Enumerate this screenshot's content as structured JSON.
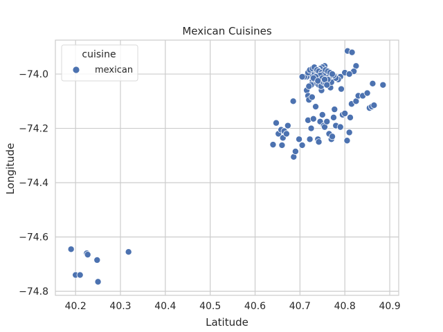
{
  "chart_data": {
    "type": "scatter",
    "title": "Mexican Cuisines",
    "xlabel": "Latitude",
    "ylabel": "Longitude",
    "xlim": [
      40.155,
      40.92
    ],
    "ylim": [
      -74.815,
      -73.875
    ],
    "xticks": [
      40.2,
      40.3,
      40.4,
      40.5,
      40.6,
      40.7,
      40.8,
      40.9
    ],
    "yticks": [
      -74.8,
      -74.6,
      -74.4,
      -74.2,
      -74.0
    ],
    "xtick_labels": [
      "40.2",
      "40.3",
      "40.4",
      "40.5",
      "40.6",
      "40.7",
      "40.8",
      "40.9"
    ],
    "ytick_labels": [
      "−74.8",
      "−74.6",
      "−74.4",
      "−74.2",
      "−74.0"
    ],
    "grid": true,
    "legend": {
      "title": "cuisine",
      "placement": "top-left"
    },
    "series": [
      {
        "name": "mexican",
        "color": "#4c72b0",
        "points": [
          [
            40.19,
            -74.645
          ],
          [
            40.2,
            -74.74
          ],
          [
            40.21,
            -74.74
          ],
          [
            40.225,
            -74.66
          ],
          [
            40.227,
            -74.665
          ],
          [
            40.248,
            -74.685
          ],
          [
            40.25,
            -74.765
          ],
          [
            40.318,
            -74.655
          ],
          [
            40.64,
            -74.26
          ],
          [
            40.647,
            -74.18
          ],
          [
            40.652,
            -74.22
          ],
          [
            40.658,
            -74.205
          ],
          [
            40.66,
            -74.262
          ],
          [
            40.662,
            -74.235
          ],
          [
            40.665,
            -74.21
          ],
          [
            40.67,
            -74.22
          ],
          [
            40.673,
            -74.19
          ],
          [
            40.685,
            -74.1
          ],
          [
            40.686,
            -74.305
          ],
          [
            40.69,
            -74.285
          ],
          [
            40.698,
            -74.24
          ],
          [
            40.705,
            -74.262
          ],
          [
            40.715,
            -74.06
          ],
          [
            40.718,
            -74.08
          ],
          [
            40.718,
            -74.17
          ],
          [
            40.72,
            -74.095
          ],
          [
            40.722,
            -74.24
          ],
          [
            40.725,
            -74.2
          ],
          [
            40.727,
            -74.085
          ],
          [
            40.73,
            -74.165
          ],
          [
            40.735,
            -74.12
          ],
          [
            40.74,
            -74.24
          ],
          [
            40.742,
            -74.25
          ],
          [
            40.745,
            -74.175
          ],
          [
            40.748,
            -74.06
          ],
          [
            40.75,
            -74.15
          ],
          [
            40.753,
            -74.19
          ],
          [
            40.755,
            -74.195
          ],
          [
            40.76,
            -74.175
          ],
          [
            40.765,
            -74.22
          ],
          [
            40.768,
            -74.05
          ],
          [
            40.77,
            -74.24
          ],
          [
            40.772,
            -74.23
          ],
          [
            40.775,
            -74.16
          ],
          [
            40.777,
            -74.13
          ],
          [
            40.78,
            -74.19
          ],
          [
            40.79,
            -74.195
          ],
          [
            40.792,
            -74.055
          ],
          [
            40.795,
            -74.15
          ],
          [
            40.8,
            -74.145
          ],
          [
            40.805,
            -74.245
          ],
          [
            40.81,
            -74.215
          ],
          [
            40.812,
            -74.16
          ],
          [
            40.815,
            -74.11
          ],
          [
            40.825,
            -74.1
          ],
          [
            40.83,
            -74.08
          ],
          [
            40.84,
            -74.08
          ],
          [
            40.85,
            -74.07
          ],
          [
            40.855,
            -74.125
          ],
          [
            40.86,
            -74.12
          ],
          [
            40.865,
            -74.115
          ],
          [
            40.885,
            -74.04
          ],
          [
            40.806,
            -73.915
          ],
          [
            40.816,
            -73.92
          ],
          [
            40.825,
            -73.97
          ],
          [
            40.82,
            -73.99
          ],
          [
            40.8,
            -73.995
          ],
          [
            40.81,
            -74.0
          ],
          [
            40.862,
            -74.035
          ],
          [
            40.79,
            -74.01
          ],
          [
            40.785,
            -74.02
          ],
          [
            40.78,
            -74.015
          ],
          [
            40.775,
            -74.005
          ],
          [
            40.77,
            -74.03
          ],
          [
            40.765,
            -74.01
          ],
          [
            40.76,
            -74.0
          ],
          [
            40.758,
            -73.99
          ],
          [
            40.755,
            -73.97
          ],
          [
            40.75,
            -73.975
          ],
          [
            40.745,
            -73.98
          ],
          [
            40.74,
            -73.985
          ],
          [
            40.735,
            -73.99
          ],
          [
            40.73,
            -73.995
          ],
          [
            40.725,
            -74.0
          ],
          [
            40.72,
            -74.005
          ],
          [
            40.715,
            -74.01
          ],
          [
            40.71,
            -74.01
          ],
          [
            40.705,
            -74.01
          ],
          [
            40.718,
            -73.995
          ],
          [
            40.722,
            -73.985
          ],
          [
            40.728,
            -73.98
          ],
          [
            40.732,
            -73.975
          ],
          [
            40.738,
            -73.985
          ],
          [
            40.742,
            -73.99
          ],
          [
            40.748,
            -73.995
          ],
          [
            40.752,
            -74.0
          ],
          [
            40.757,
            -73.985
          ],
          [
            40.762,
            -73.99
          ],
          [
            40.767,
            -73.995
          ],
          [
            40.772,
            -74.0
          ],
          [
            40.728,
            -74.025
          ],
          [
            40.733,
            -74.03
          ],
          [
            40.738,
            -74.035
          ],
          [
            40.742,
            -74.04
          ],
          [
            40.747,
            -74.045
          ],
          [
            40.752,
            -74.03
          ],
          [
            40.757,
            -74.035
          ],
          [
            40.762,
            -74.02
          ],
          [
            40.725,
            -74.04
          ],
          [
            40.72,
            -74.045
          ],
          [
            40.745,
            -74.005
          ],
          [
            40.75,
            -74.015
          ],
          [
            40.755,
            -74.02
          ],
          [
            40.76,
            -74.04
          ],
          [
            40.735,
            -74.01
          ],
          [
            40.73,
            -74.015
          ],
          [
            40.74,
            -74.025
          ]
        ]
      }
    ]
  }
}
